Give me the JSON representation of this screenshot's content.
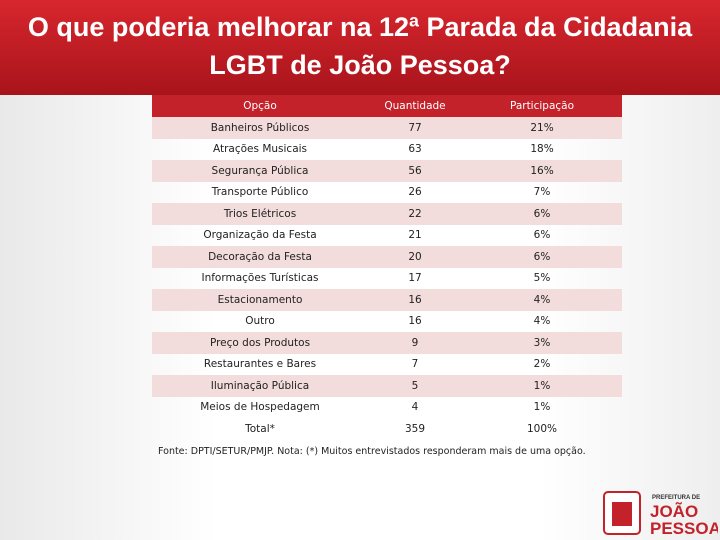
{
  "header": {
    "title": "O que poderia melhorar na 12ª Parada da Cidadania LGBT de João Pessoa?"
  },
  "table": {
    "columns": [
      "Opção",
      "Quantidade",
      "Participação"
    ],
    "rows": [
      [
        "Banheiros Públicos",
        "77",
        "21%"
      ],
      [
        "Atrações Musicais",
        "63",
        "18%"
      ],
      [
        "Segurança Pública",
        "56",
        "16%"
      ],
      [
        "Transporte Público",
        "26",
        "7%"
      ],
      [
        "Trios Elétricos",
        "22",
        "6%"
      ],
      [
        "Organização da Festa",
        "21",
        "6%"
      ],
      [
        "Decoração da Festa",
        "20",
        "6%"
      ],
      [
        "Informações Turísticas",
        "17",
        "5%"
      ],
      [
        "Estacionamento",
        "16",
        "4%"
      ],
      [
        "Outro",
        "16",
        "4%"
      ],
      [
        "Preço dos Produtos",
        "9",
        "3%"
      ],
      [
        "Restaurantes e Bares",
        "7",
        "2%"
      ],
      [
        "Iluminação Pública",
        "5",
        "1%"
      ],
      [
        "Meios de Hospedagem",
        "4",
        "1%"
      ],
      [
        "Total*",
        "359",
        "100%"
      ]
    ],
    "note": "Fonte: DPTI/SETUR/PMJP. Nota: (*) Muitos entrevistados responderam mais de uma opção."
  },
  "logo": {
    "line1": "PREFEITURA DE",
    "line2": "JOÃO",
    "line3": "PESSOA"
  }
}
